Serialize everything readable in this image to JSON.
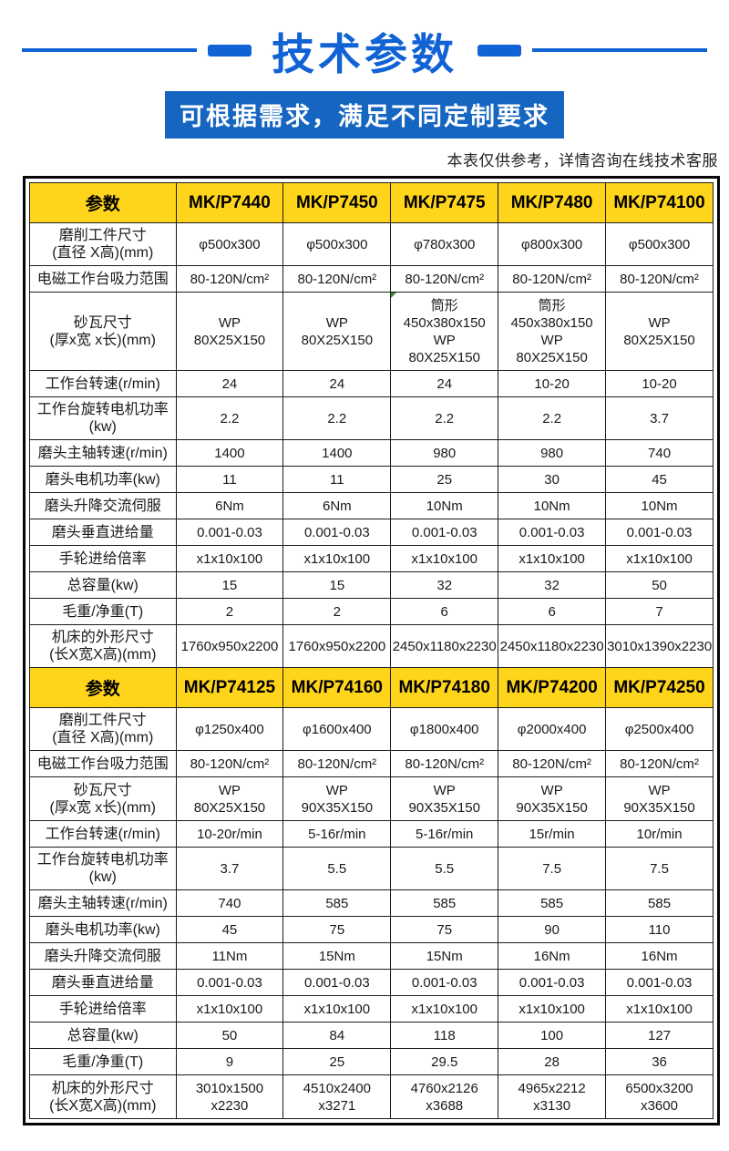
{
  "header": {
    "title": "技术参数",
    "banner": "可根据需求，满足不同定制要求",
    "disclaimer": "本表仅供参考，详情咨询在线技术客服"
  },
  "colors": {
    "accent_blue": "#1062D5",
    "banner_blue": "#1565C1",
    "header_yellow": "#FFD51C",
    "marker_green": "#3a8a2d"
  },
  "tables": [
    {
      "header": [
        "参数",
        "MK/P7440",
        "MK/P7450",
        "MK/P7475",
        "MK/P7480",
        "MK/P74100"
      ],
      "rows": [
        {
          "label": "磨削工件尺寸\n(直径 X高)(mm)",
          "values": [
            "φ500x300",
            "φ500x300",
            "φ780x300",
            "φ800x300",
            "φ500x300"
          ]
        },
        {
          "label": "电磁工作台吸力范围",
          "values": [
            "80-120N/cm²",
            "80-120N/cm²",
            "80-120N/cm²",
            "80-120N/cm²",
            "80-120N/cm²"
          ]
        },
        {
          "label": "砂瓦尺寸\n(厚x宽 x长)(mm)",
          "values": [
            "WP\n80X25X150",
            "WP\n80X25X150",
            "筒形\n450x380x150\nWP\n80X25X150",
            "筒形\n450x380x150\nWP\n80X25X150",
            "WP\n80X25X150"
          ]
        },
        {
          "label": "工作台转速(r/min)",
          "values": [
            "24",
            "24",
            "24",
            "10-20",
            "10-20"
          ]
        },
        {
          "label": "工作台旋转电机功率(kw)",
          "values": [
            "2.2",
            "2.2",
            "2.2",
            "2.2",
            "3.7"
          ]
        },
        {
          "label": "磨头主轴转速(r/min)",
          "values": [
            "1400",
            "1400",
            "980",
            "980",
            "740"
          ]
        },
        {
          "label": "磨头电机功率(kw)",
          "values": [
            "11",
            "11",
            "25",
            "30",
            "45"
          ]
        },
        {
          "label": "磨头升降交流伺服",
          "values": [
            "6Nm",
            "6Nm",
            "10Nm",
            "10Nm",
            "10Nm"
          ]
        },
        {
          "label": "磨头垂直进给量",
          "values": [
            "0.001-0.03",
            "0.001-0.03",
            "0.001-0.03",
            "0.001-0.03",
            "0.001-0.03"
          ]
        },
        {
          "label": "手轮进给倍率",
          "values": [
            "x1x10x100",
            "x1x10x100",
            "x1x10x100",
            "x1x10x100",
            "x1x10x100"
          ]
        },
        {
          "label": "总容量(kw)",
          "values": [
            "15",
            "15",
            "32",
            "32",
            "50"
          ]
        },
        {
          "label": "毛重/净重(T)",
          "values": [
            "2",
            "2",
            "6",
            "6",
            "7"
          ]
        },
        {
          "label": "机床的外形尺寸\n(长X宽X高)(mm)",
          "values": [
            "1760x950x2200",
            "1760x950x2200",
            "2450x1180x2230",
            "2450x1180x2230",
            "3010x1390x2230"
          ]
        }
      ]
    },
    {
      "header": [
        "参数",
        "MK/P74125",
        "MK/P74160",
        "MK/P74180",
        "MK/P74200",
        "MK/P74250"
      ],
      "rows": [
        {
          "label": "磨削工件尺寸\n(直径 X高)(mm)",
          "values": [
            "φ1250x400",
            "φ1600x400",
            "φ1800x400",
            "φ2000x400",
            "φ2500x400"
          ]
        },
        {
          "label": "电磁工作台吸力范围",
          "values": [
            "80-120N/cm²",
            "80-120N/cm²",
            "80-120N/cm²",
            "80-120N/cm²",
            "80-120N/cm²"
          ]
        },
        {
          "label": "砂瓦尺寸\n(厚x宽 x长)(mm)",
          "values": [
            "WP\n80X25X150",
            "WP\n90X35X150",
            "WP\n90X35X150",
            "WP\n90X35X150",
            "WP\n90X35X150"
          ]
        },
        {
          "label": "工作台转速(r/min)",
          "values": [
            "10-20r/min",
            "5-16r/min",
            "5-16r/min",
            "15r/min",
            "10r/min"
          ]
        },
        {
          "label": "工作台旋转电机功率(kw)",
          "values": [
            "3.7",
            "5.5",
            "5.5",
            "7.5",
            "7.5"
          ]
        },
        {
          "label": "磨头主轴转速(r/min)",
          "values": [
            "740",
            "585",
            "585",
            "585",
            "585"
          ]
        },
        {
          "label": "磨头电机功率(kw)",
          "values": [
            "45",
            "75",
            "75",
            "90",
            "110"
          ]
        },
        {
          "label": "磨头升降交流伺服",
          "values": [
            "11Nm",
            "15Nm",
            "15Nm",
            "16Nm",
            "16Nm"
          ]
        },
        {
          "label": "磨头垂直进给量",
          "values": [
            "0.001-0.03",
            "0.001-0.03",
            "0.001-0.03",
            "0.001-0.03",
            "0.001-0.03"
          ]
        },
        {
          "label": "手轮进给倍率",
          "values": [
            "x1x10x100",
            "x1x10x100",
            "x1x10x100",
            "x1x10x100",
            "x1x10x100"
          ]
        },
        {
          "label": "总容量(kw)",
          "values": [
            "50",
            "84",
            "118",
            "100",
            "127"
          ]
        },
        {
          "label": "毛重/净重(T)",
          "values": [
            "9",
            "25",
            "29.5",
            "28",
            "36"
          ]
        },
        {
          "label": "机床的外形尺寸\n(长X宽X高)(mm)",
          "values": [
            "3010x1500 x2230",
            "4510x2400 x3271",
            "4760x2126 x3688",
            "4965x2212 x3130",
            "6500x3200 x3600"
          ]
        }
      ]
    }
  ],
  "cell_marker": {
    "table_index": 0,
    "row_index": 2,
    "value_index": 2
  }
}
